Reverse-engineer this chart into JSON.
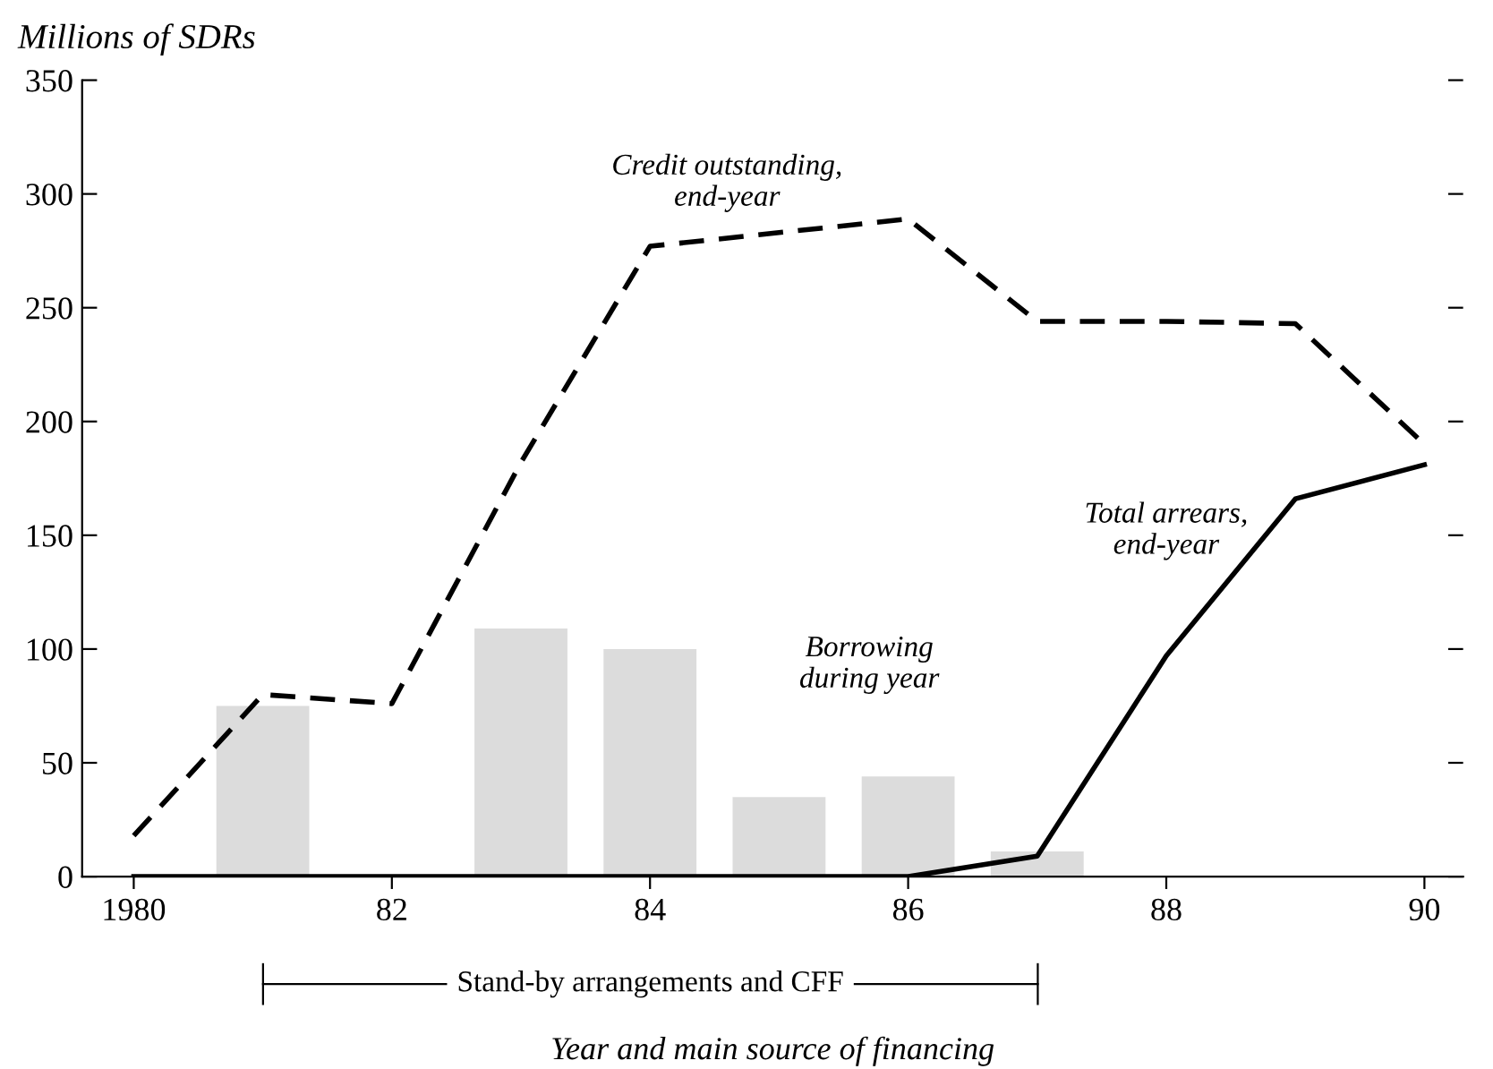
{
  "chart_data": {
    "type": "line",
    "ylabel": "Millions of SDRs",
    "xlabel": "Year and main source of financing",
    "series": [
      {
        "type": "bar",
        "color": "#dcdcdc",
        "x": [
          1981,
          1983,
          1984,
          1985,
          1986,
          1987
        ],
        "values": [
          75,
          109,
          100,
          35,
          44,
          11
        ]
      },
      {
        "color": "#000000",
        "line_style": "dashed",
        "x": [
          1980,
          1981,
          1982,
          1983,
          1984,
          1985,
          1986,
          1987,
          1988,
          1989,
          1990
        ],
        "values": [
          18,
          80,
          76,
          182,
          277,
          283,
          289,
          244,
          244,
          243,
          190
        ]
      },
      {
        "color": "#000000",
        "line_style": "solid",
        "x": [
          1980,
          1981,
          1982,
          1983,
          1984,
          1985,
          1986,
          1987,
          1988,
          1989,
          1990
        ],
        "values": [
          0,
          0,
          0,
          0,
          0,
          0,
          0,
          9,
          97,
          166,
          181
        ]
      }
    ],
    "annotations": [
      "Credit outstanding,\nend-year",
      "Total arrears,\nend-year",
      "Borrowing\nduring year",
      "Stand-by arrangements and CFF"
    ],
    "xlim": [
      1979.6,
      1990.3
    ],
    "xticks": [
      {
        "value": 1980,
        "label": "1980"
      },
      {
        "value": 1982,
        "label": "82"
      },
      {
        "value": 1984,
        "label": "84"
      },
      {
        "value": 1986,
        "label": "86"
      },
      {
        "value": 1988,
        "label": "88"
      },
      {
        "value": 1990,
        "label": "90"
      }
    ],
    "ylim": [
      0,
      350
    ],
    "yticks": [
      0,
      50,
      100,
      150,
      200,
      250,
      300,
      350
    ],
    "grid": false,
    "legend": false
  }
}
